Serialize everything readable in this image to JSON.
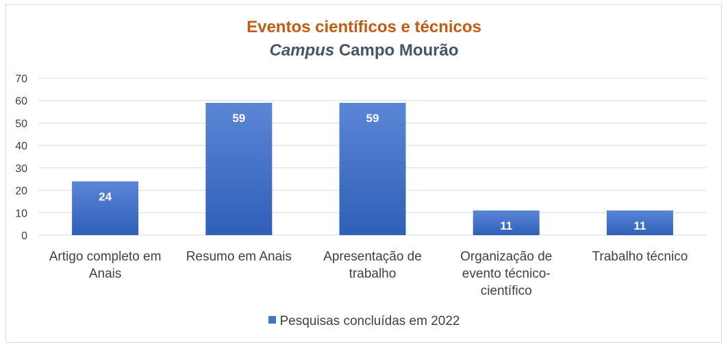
{
  "chart_data": {
    "type": "bar",
    "title": "Eventos científicos e técnicos",
    "subtitle_italic": "Campus",
    "subtitle_rest": " Campo Mourão",
    "categories": [
      [
        "Artigo completo em",
        "Anais"
      ],
      [
        "Resumo em Anais"
      ],
      [
        "Apresentação de",
        "trabalho"
      ],
      [
        "Organização de",
        "evento técnico-",
        "científico"
      ],
      [
        "Trabalho técnico"
      ]
    ],
    "series": [
      {
        "name": "Pesquisas concluídas em 2022",
        "values": [
          24,
          59,
          59,
          11,
          11
        ]
      }
    ],
    "ylim": [
      0,
      70
    ],
    "yticks": [
      0,
      10,
      20,
      30,
      40,
      50,
      60,
      70
    ],
    "grid": true,
    "legend_position": "bottom",
    "colors": {
      "bar_top": "#5b86d6",
      "bar_bottom": "#2f5fb8",
      "grid": "#d9d9d9",
      "label": "#ffffff"
    }
  }
}
